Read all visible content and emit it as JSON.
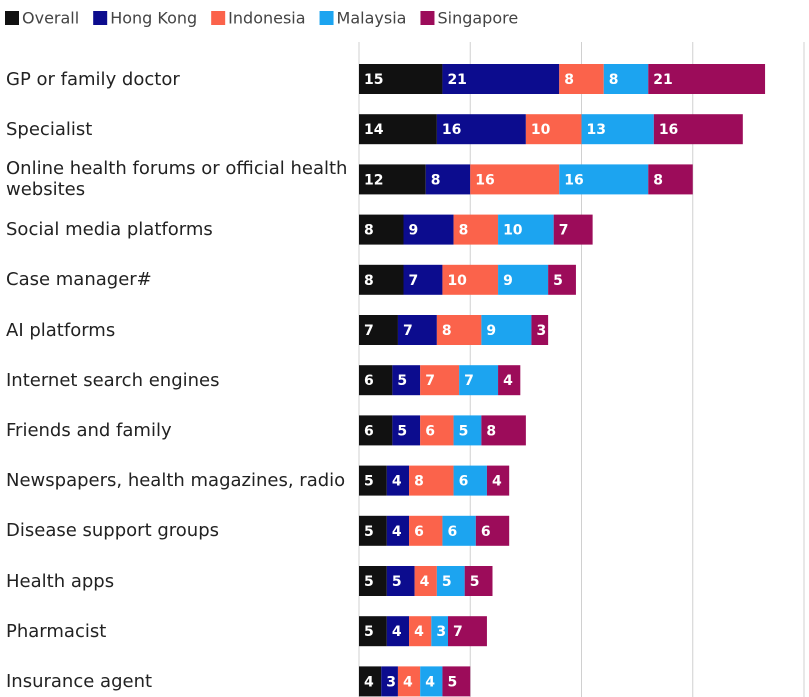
{
  "chart_data": {
    "type": "stacked_bar_horizontal",
    "categories": [
      "GP or family doctor",
      "Specialist",
      "Online health forums or official health websites",
      "Social media platforms",
      "Case manager#",
      "AI platforms",
      "Internet search engines",
      "Friends and family",
      "Newspapers, health magazines, radio",
      "Disease support groups",
      "Health apps",
      "Pharmacist",
      "Insurance agent"
    ],
    "series": [
      {
        "name": "Overall",
        "color": "#111111",
        "values": [
          15,
          14,
          12,
          8,
          8,
          7,
          6,
          6,
          5,
          5,
          5,
          5,
          4
        ]
      },
      {
        "name": "Hong Kong",
        "color": "#0c0c8e",
        "values": [
          21,
          16,
          8,
          9,
          7,
          7,
          5,
          5,
          4,
          4,
          5,
          4,
          3
        ]
      },
      {
        "name": "Indonesia",
        "color": "#fb634b",
        "values": [
          8,
          10,
          16,
          8,
          10,
          8,
          7,
          6,
          8,
          6,
          4,
          4,
          4
        ]
      },
      {
        "name": "Malaysia",
        "color": "#1ca4f0",
        "values": [
          8,
          13,
          16,
          10,
          9,
          9,
          7,
          5,
          6,
          6,
          5,
          3,
          4
        ]
      },
      {
        "name": "Singapore",
        "color": "#9c0c5a",
        "values": [
          21,
          16,
          8,
          7,
          5,
          3,
          4,
          8,
          4,
          6,
          5,
          7,
          5
        ]
      }
    ],
    "xlim": [
      0,
      80
    ],
    "xticks": [
      0,
      20,
      40,
      60,
      80
    ],
    "grid": true,
    "legend": "top"
  }
}
